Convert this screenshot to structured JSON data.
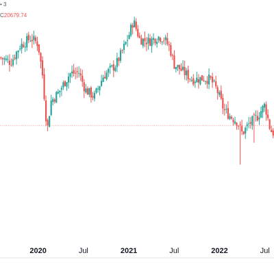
{
  "legend": {
    "line1": "• 3",
    "close_prefix": "C",
    "close_value": "20679.74"
  },
  "colors": {
    "up": "#26a69a",
    "down": "#ef5350",
    "reference_line": "#ef5350",
    "axis_text": "#131722",
    "axis_line": "#e0e3eb"
  },
  "chart_data": {
    "type": "candlestick",
    "title": "",
    "xlabel": "",
    "ylabel": "",
    "x_ticks": [
      {
        "label": "2020",
        "major": true,
        "t": 0
      },
      {
        "label": "Jul",
        "major": false,
        "t": 0.5
      },
      {
        "label": "2021",
        "major": true,
        "t": 1
      },
      {
        "label": "Jul",
        "major": false,
        "t": 1.5
      },
      {
        "label": "2022",
        "major": true,
        "t": 2
      },
      {
        "label": "Jul",
        "major": false,
        "t": 2.5
      }
    ],
    "reference_value": 20679.74,
    "ylim": [
      12000,
      31000
    ],
    "xlim": [
      -0.42,
      2.6
    ],
    "anchors": [
      [
        -0.42,
        26600
      ],
      [
        -0.3,
        26200
      ],
      [
        -0.2,
        27600
      ],
      [
        -0.08,
        28300
      ],
      [
        0.0,
        27800
      ],
      [
        0.05,
        25000
      ],
      [
        0.1,
        20200
      ],
      [
        0.14,
        22800
      ],
      [
        0.22,
        23500
      ],
      [
        0.35,
        25200
      ],
      [
        0.45,
        25300
      ],
      [
        0.52,
        23800
      ],
      [
        0.62,
        23200
      ],
      [
        0.72,
        25000
      ],
      [
        0.86,
        26000
      ],
      [
        0.92,
        27000
      ],
      [
        1.0,
        28500
      ],
      [
        1.05,
        29800
      ],
      [
        1.12,
        28200
      ],
      [
        1.22,
        28000
      ],
      [
        1.32,
        28400
      ],
      [
        1.38,
        28300
      ],
      [
        1.45,
        27500
      ],
      [
        1.5,
        26000
      ],
      [
        1.58,
        25500
      ],
      [
        1.7,
        24700
      ],
      [
        1.82,
        24800
      ],
      [
        1.9,
        24700
      ],
      [
        1.97,
        23800
      ],
      [
        2.05,
        22000
      ],
      [
        2.12,
        21500
      ],
      [
        2.2,
        21000
      ],
      [
        2.25,
        20000
      ],
      [
        2.32,
        20800
      ],
      [
        2.42,
        21500
      ],
      [
        2.5,
        22500
      ],
      [
        2.56,
        20300
      ],
      [
        2.6,
        20000
      ]
    ],
    "wick_spikes": [
      {
        "t": 0.1,
        "low": 20200
      },
      {
        "t": 2.22,
        "low": 17300
      },
      {
        "t": 2.38,
        "low": 19200
      }
    ]
  }
}
